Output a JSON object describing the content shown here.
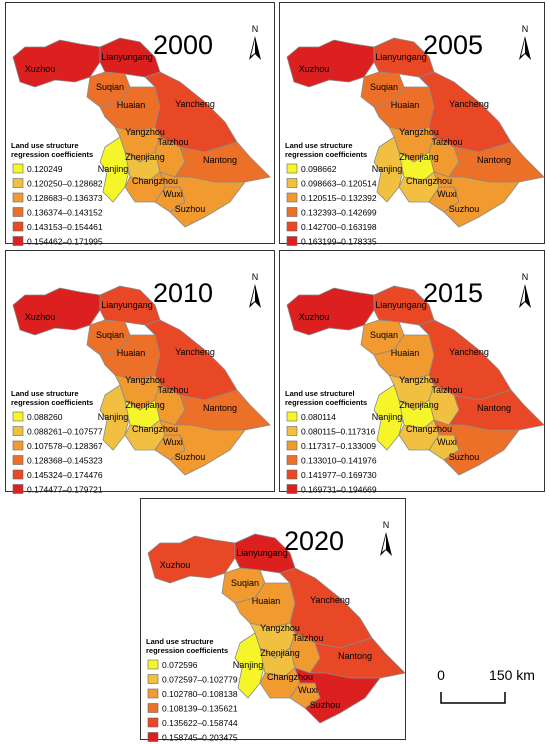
{
  "cities": [
    "Xuzhou",
    "Lianyungang",
    "Suqian",
    "Huaian",
    "Yancheng",
    "Yangzhou",
    "Taizhou",
    "Nantong",
    "Nanjing",
    "Zhenjiang",
    "Changzhou",
    "Wuxi",
    "Suzhou"
  ],
  "north": "N",
  "scale_bar": {
    "start": "0",
    "end": "150 km"
  },
  "panels": [
    {
      "year": "2000",
      "legend_title": [
        "Land use structure",
        "regression coefficients"
      ],
      "legend": [
        {
          "label": "0.120249",
          "color": "#f5f52a"
        },
        {
          "label": "0.120250–0.128682",
          "color": "#f2c040"
        },
        {
          "label": "0.128683–0.136373",
          "color": "#f09a30"
        },
        {
          "label": "0.136374–0.143152",
          "color": "#ec7028"
        },
        {
          "label": "0.143153–0.154461",
          "color": "#e84826"
        },
        {
          "label": "0.154462–0.171995",
          "color": "#dc1f1f"
        }
      ],
      "region_colors": [
        "#dc1f1f",
        "#dc1f1f",
        "#ec7028",
        "#ec7028",
        "#e84826",
        "#f09a30",
        "#f09a30",
        "#ec7028",
        "#f5f52a",
        "#f2c040",
        "#f09a30",
        "#f09a30",
        "#f09a30"
      ]
    },
    {
      "year": "2005",
      "legend_title": [
        "Land use structure",
        "regression coefficients"
      ],
      "legend": [
        {
          "label": "0.098662",
          "color": "#f5f52a"
        },
        {
          "label": "0.098663–0.120514",
          "color": "#f2c040"
        },
        {
          "label": "0.120515–0.132392",
          "color": "#f09a30"
        },
        {
          "label": "0.132393–0.142699",
          "color": "#ec7028"
        },
        {
          "label": "0.142700–0.163198",
          "color": "#e84826"
        },
        {
          "label": "0.163199–0.178335",
          "color": "#dc1f1f"
        }
      ],
      "region_colors": [
        "#dc1f1f",
        "#e84826",
        "#ec7028",
        "#ec7028",
        "#e84826",
        "#f09a30",
        "#f09a30",
        "#ec7028",
        "#f2c040",
        "#f5f52a",
        "#f2c040",
        "#f09a30",
        "#f09a30"
      ]
    },
    {
      "year": "2010",
      "legend_title": [
        "Land use structure",
        "regression coefficients"
      ],
      "legend": [
        {
          "label": "0.088260",
          "color": "#f5f52a"
        },
        {
          "label": "0.088261–0.107577",
          "color": "#f2c040"
        },
        {
          "label": "0.107578–0.128367",
          "color": "#f09a30"
        },
        {
          "label": "0.128368–0.145323",
          "color": "#ec7028"
        },
        {
          "label": "0.145324–0.174476",
          "color": "#e84826"
        },
        {
          "label": "0.174477–0.179721",
          "color": "#dc1f1f"
        }
      ],
      "region_colors": [
        "#dc1f1f",
        "#e84826",
        "#ec7028",
        "#ec7028",
        "#e84826",
        "#f09a30",
        "#f09a30",
        "#ec7028",
        "#f2c040",
        "#f5f52a",
        "#f2c040",
        "#f09a30",
        "#f09a30"
      ]
    },
    {
      "year": "2015",
      "legend_title": [
        "Land use structurel",
        "regression coefficients"
      ],
      "legend": [
        {
          "label": "0.080114",
          "color": "#f5f52a"
        },
        {
          "label": "0.080115–0.117316",
          "color": "#f2c040"
        },
        {
          "label": "0.117317–0.133009",
          "color": "#f09a30"
        },
        {
          "label": "0.133010–0.141976",
          "color": "#ec7028"
        },
        {
          "label": "0.141977–0.169730",
          "color": "#e84826"
        },
        {
          "label": "0.169731–0.194669",
          "color": "#dc1f1f"
        }
      ],
      "region_colors": [
        "#dc1f1f",
        "#e84826",
        "#f09a30",
        "#f09a30",
        "#e84826",
        "#f2c040",
        "#f2c040",
        "#e84826",
        "#f5f52a",
        "#f5f52a",
        "#f2c040",
        "#f2c040",
        "#ec7028"
      ]
    },
    {
      "year": "2020",
      "legend_title": [
        "Land use structure",
        "regression coefficients"
      ],
      "legend": [
        {
          "label": "0.072596",
          "color": "#f5f52a"
        },
        {
          "label": "0.072597–0.102779",
          "color": "#f2c040"
        },
        {
          "label": "0.102780–0.108138",
          "color": "#f09a30"
        },
        {
          "label": "0.108139–0.135621",
          "color": "#ec7028"
        },
        {
          "label": "0.135622–0.158744",
          "color": "#e84826"
        },
        {
          "label": "0.158745–0.203475",
          "color": "#dc1f1f"
        }
      ],
      "region_colors": [
        "#e84826",
        "#dc1f1f",
        "#f09a30",
        "#f09a30",
        "#e84826",
        "#f2c040",
        "#f09a30",
        "#e84826",
        "#f5f52a",
        "#f2c040",
        "#f09a30",
        "#f09a30",
        "#dc1f1f"
      ]
    }
  ]
}
